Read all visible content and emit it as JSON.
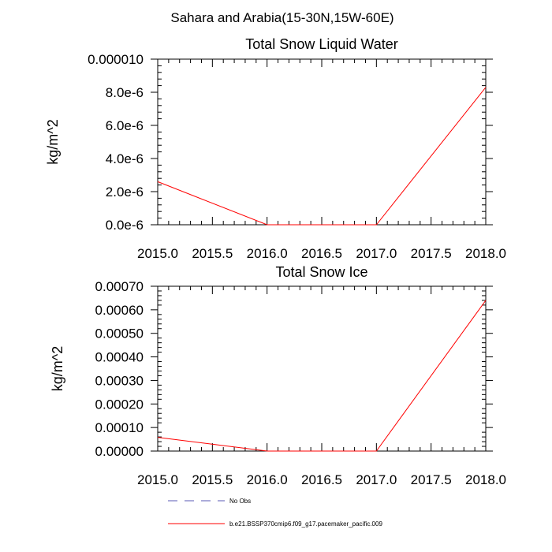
{
  "figure": {
    "title": "Sahara and Arabia(15-30N,15W-60E)",
    "legend": {
      "placement": "bottom",
      "entries": [
        {
          "label": "No Obs",
          "color": "#5a5ab4",
          "style": "dashed"
        },
        {
          "label": "b.e21.BSSP370cmip6.f09_g17.pacemaker_pacific.009",
          "color": "#ff0000",
          "style": "solid"
        }
      ]
    }
  },
  "chart_data": [
    {
      "type": "line",
      "title": "Total Snow Liquid Water",
      "xlabel": "",
      "ylabel": "kg/m^2",
      "xlim": [
        2015.0,
        2018.0
      ],
      "ylim": [
        0,
        1e-05
      ],
      "grid": false,
      "x_ticks": [
        "2015.0",
        "2015.5",
        "2016.0",
        "2016.5",
        "2017.0",
        "2017.5",
        "2018.0"
      ],
      "y_ticks": [
        "0.0e-6",
        "2.0e-6",
        "4.0e-6",
        "6.0e-6",
        "8.0e-6",
        "0.000010"
      ],
      "series": [
        {
          "name": "b.e21.BSSP370cmip6.f09_g17.pacemaker_pacific.009",
          "color": "#ff0000",
          "x": [
            2015.0,
            2016.0,
            2017.0,
            2018.0
          ],
          "y": [
            2.6e-06,
            0.0,
            0.0,
            8.3e-06
          ]
        }
      ]
    },
    {
      "type": "line",
      "title": "Total Snow Ice",
      "xlabel": "",
      "ylabel": "kg/m^2",
      "xlim": [
        2015.0,
        2018.0
      ],
      "ylim": [
        0,
        0.0007
      ],
      "grid": false,
      "x_ticks": [
        "2015.0",
        "2015.5",
        "2016.0",
        "2016.5",
        "2017.0",
        "2017.5",
        "2018.0"
      ],
      "y_ticks": [
        "0.00000",
        "0.00010",
        "0.00020",
        "0.00030",
        "0.00040",
        "0.00050",
        "0.00060",
        "0.00070"
      ],
      "series": [
        {
          "name": "b.e21.BSSP370cmip6.f09_g17.pacemaker_pacific.009",
          "color": "#ff0000",
          "x": [
            2015.0,
            2016.0,
            2017.0,
            2018.0
          ],
          "y": [
            5.8e-05,
            0.0,
            0.0,
            0.00064
          ]
        }
      ]
    }
  ]
}
